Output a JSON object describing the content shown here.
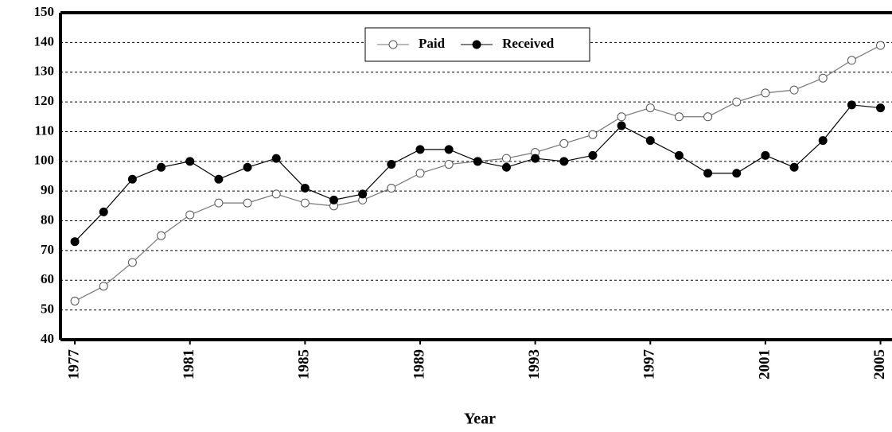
{
  "chart_data": {
    "type": "line",
    "x_label": "Year",
    "x": [
      1977,
      1978,
      1979,
      1980,
      1981,
      1982,
      1983,
      1984,
      1985,
      1986,
      1987,
      1988,
      1989,
      1990,
      1991,
      1992,
      1993,
      1994,
      1995,
      1996,
      1997,
      1998,
      1999,
      2000,
      2001,
      2002,
      2003,
      2004,
      2005
    ],
    "series": [
      {
        "name": "Paid",
        "color": "#ffffff",
        "values": [
          53,
          58,
          66,
          75,
          82,
          86,
          86,
          89,
          86,
          85,
          87,
          91,
          96,
          99,
          100,
          101,
          103,
          106,
          109,
          115,
          118,
          115,
          115,
          120,
          123,
          124,
          128,
          134,
          139
        ]
      },
      {
        "name": "Received",
        "color": "#000000",
        "values": [
          73,
          83,
          94,
          98,
          100,
          94,
          98,
          101,
          91,
          87,
          89,
          99,
          104,
          104,
          100,
          98,
          101,
          100,
          102,
          112,
          107,
          102,
          96,
          96,
          102,
          98,
          107,
          119,
          118
        ]
      }
    ],
    "xlim": [
      1976.5,
      2005.4
    ],
    "xticks": [
      1977,
      1981,
      1985,
      1989,
      1993,
      1997,
      2001,
      2005
    ],
    "ylim": [
      40,
      150
    ],
    "yticks": [
      40,
      50,
      60,
      70,
      80,
      90,
      100,
      110,
      120,
      130,
      140,
      150
    ],
    "grid": true,
    "legend_position": "top"
  }
}
